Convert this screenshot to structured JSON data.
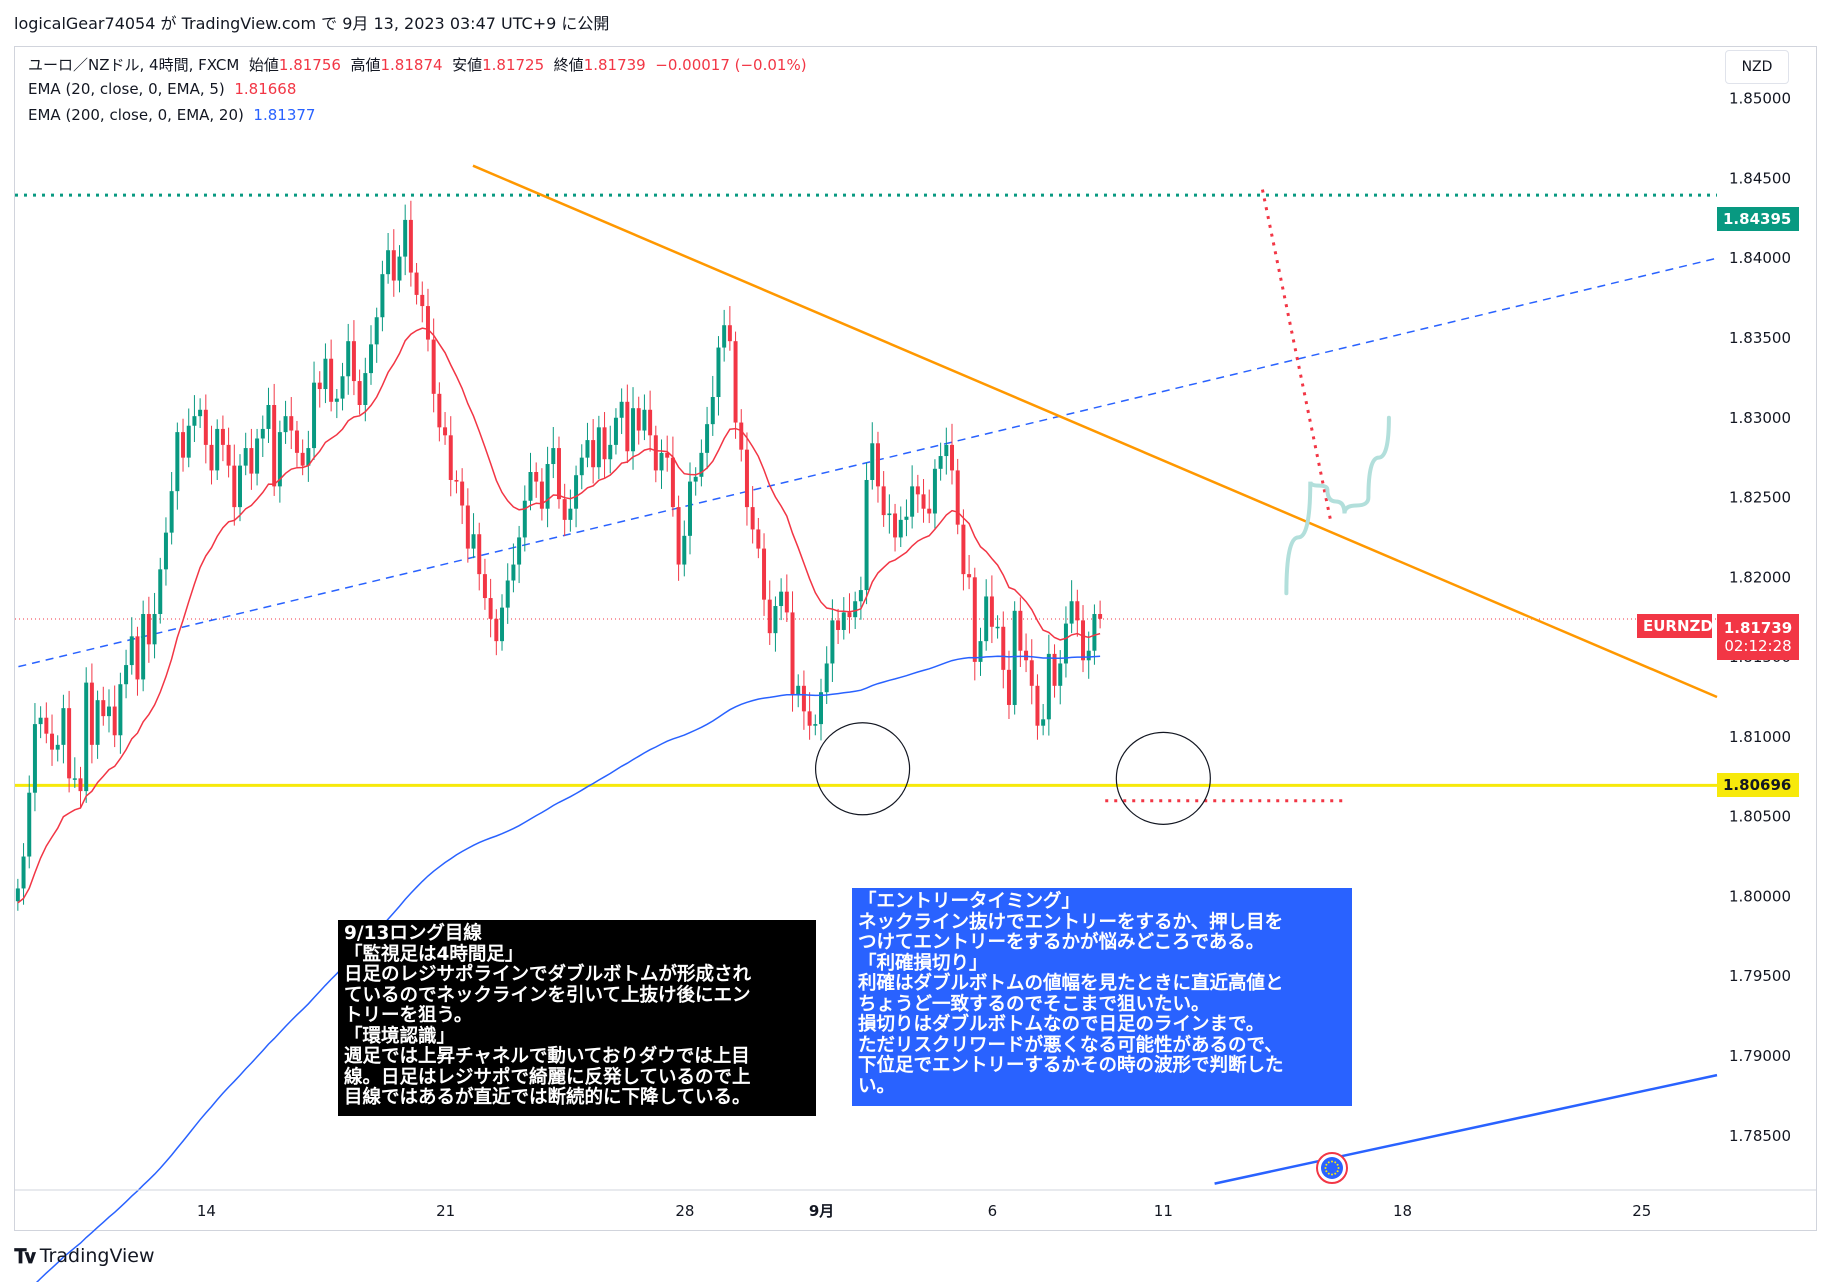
{
  "header": {
    "publisher": "logicalGear74054 が TradingView.com で 9月 13, 2023 03:47 UTC+9 に公開"
  },
  "legend": {
    "symbol": "ユーロ／NZドル, 4時間, FXCM",
    "open_label": "始値",
    "open": "1.81756",
    "high_label": "高値",
    "high": "1.81874",
    "low_label": "安値",
    "low": "1.81725",
    "close_label": "終値",
    "close": "1.81739",
    "change": "−0.00017 (−0.01%)",
    "ema20_label": "EMA (20, close, 0, EMA, 5)",
    "ema20_value": "1.81668",
    "ema200_label": "EMA (200, close, 0, EMA, 20)",
    "ema200_value": "1.81377"
  },
  "currency_button": "NZD",
  "price_tags": {
    "resistance": "1.84395",
    "support": "1.80696",
    "symbol": "EURNZD",
    "last": "1.81739",
    "countdown": "02:12:28"
  },
  "notes": {
    "left": "9/13ロング目線\n「監視足は4時間足」\n日足のレジサポラインでダブルボトムが形成され\nているのでネックラインを引いて上抜け後にエン\nトリーを狙う。\n「環境認識」\n週足では上昇チャネルで動いておりダウでは上目\n線。日足はレジサポで綺麗に反発しているので上\n目線ではあるが直近では断続的に下降している。",
    "right": "「エントリータイミング」\nネックライン抜けでエントリーをするか、押し目を\nつけてエントリーをするかが悩みどころである。\n「利確損切り」\n利確はダブルボトムの値幅を見たときに直近高値と\nちょうど一致するのでそこまで狙いたい。\n損切りはダブルボトムなので日足のラインまで。\nただリスクリワードが悪くなる可能性があるので、\n下位足でエントリーするかその時の波形で判断した\nい。"
  },
  "brand": "TradingView",
  "colors": {
    "up": "#089981",
    "down": "#f23645",
    "ema20": "#f23645",
    "ema200": "#2962ff",
    "resistance": "#089981",
    "support": "#f7e90b",
    "trend": "#ff9800",
    "channel": "#2962ff",
    "projection": "#b2dfdb",
    "stop": "#f23645"
  },
  "chart_data": {
    "type": "candlestick",
    "symbol": "EURNZD",
    "timeframe": "4時間",
    "y_ticks": [
      1.85,
      1.845,
      1.84,
      1.835,
      1.83,
      1.825,
      1.82,
      1.815,
      1.81,
      1.805,
      1.8,
      1.795,
      1.79,
      1.785
    ],
    "y_tick_labels": [
      "1.85000",
      "1.84500",
      "1.84000",
      "1.83500",
      "1.83000",
      "1.82500",
      "1.82000",
      "1.81500",
      "1.81000",
      "1.80500",
      "1.80000",
      "1.79500",
      "1.79000",
      "1.78500"
    ],
    "ylim": [
      1.7816,
      1.8533
    ],
    "x_tick_labels": [
      "14",
      "21",
      "28",
      "9月",
      "6",
      "11",
      "18",
      "25"
    ],
    "x_ticks_day": [
      14,
      21,
      28,
      32,
      37,
      42,
      49,
      56
    ],
    "x_start_day": 8.4,
    "x_end_day": 58.2,
    "bars_per_day": 6,
    "closes": [
      1.8005,
      1.8025,
      1.8065,
      1.8108,
      1.8112,
      1.8102,
      1.8092,
      1.8095,
      1.8118,
      1.8074,
      1.8074,
      1.8066,
      1.8134,
      1.8095,
      1.8123,
      1.8113,
      1.8119,
      1.8101,
      1.8133,
      1.8145,
      1.8163,
      1.8136,
      1.8177,
      1.8158,
      1.8177,
      1.8205,
      1.8228,
      1.8254,
      1.8291,
      1.8275,
      1.8295,
      1.8301,
      1.8305,
      1.8283,
      1.8267,
      1.8293,
      1.8283,
      1.827,
      1.8244,
      1.827,
      1.8281,
      1.8265,
      1.8287,
      1.8293,
      1.8308,
      1.8257,
      1.8291,
      1.8301,
      1.8292,
      1.8278,
      1.827,
      1.8281,
      1.8322,
      1.8318,
      1.8337,
      1.831,
      1.8312,
      1.8326,
      1.8348,
      1.8323,
      1.8308,
      1.8328,
      1.8346,
      1.8363,
      1.839,
      1.8405,
      1.8386,
      1.8401,
      1.8424,
      1.8391,
      1.8377,
      1.837,
      1.8349,
      1.8315,
      1.8294,
      1.8289,
      1.8261,
      1.826,
      1.8245,
      1.8218,
      1.8227,
      1.8202,
      1.8187,
      1.8174,
      1.816,
      1.8181,
      1.8198,
      1.8208,
      1.8225,
      1.8248,
      1.8266,
      1.826,
      1.8243,
      1.8271,
      1.8281,
      1.8249,
      1.8236,
      1.8243,
      1.8264,
      1.8275,
      1.8286,
      1.8269,
      1.8294,
      1.8274,
      1.8283,
      1.83,
      1.831,
      1.8279,
      1.8306,
      1.8292,
      1.8305,
      1.8289,
      1.8267,
      1.8278,
      1.8275,
      1.8244,
      1.8208,
      1.8226,
      1.826,
      1.8263,
      1.8278,
      1.8296,
      1.8313,
      1.8344,
      1.8358,
      1.8348,
      1.8297,
      1.828,
      1.8244,
      1.823,
      1.8218,
      1.8186,
      1.8165,
      1.8182,
      1.8191,
      1.8178,
      1.8126,
      1.8132,
      1.8116,
      1.8107,
      1.8108,
      1.8128,
      1.8146,
      1.8173,
      1.8167,
      1.8178,
      1.8175,
      1.8185,
      1.8192,
      1.8261,
      1.8284,
      1.8257,
      1.8239,
      1.824,
      1.8225,
      1.8236,
      1.8238,
      1.8257,
      1.8252,
      1.8243,
      1.824,
      1.8268,
      1.8276,
      1.8283,
      1.8267,
      1.8233,
      1.8202,
      1.82,
      1.8147,
      1.816,
      1.8188,
      1.8169,
      1.8169,
      1.8142,
      1.812,
      1.8179,
      1.8154,
      1.8148,
      1.8132,
      1.8107,
      1.8111,
      1.8152,
      1.8132,
      1.8146,
      1.8171,
      1.8185,
      1.8173,
      1.8148,
      1.8154,
      1.8177,
      1.8174
    ],
    "ema20_last": 1.81668,
    "ema200_last": 1.81377,
    "last_price": 1.81739,
    "levels": [
      {
        "name": "resistance",
        "price": 1.84395,
        "style": "dotted"
      },
      {
        "name": "support",
        "price": 1.80696,
        "style": "solid"
      }
    ],
    "annotations": {
      "trendline": {
        "from": [
          21.8,
          1.8458
        ],
        "to": [
          58.2,
          1.8125
        ]
      },
      "channel_dashed": {
        "from": [
          8.5,
          1.8144
        ],
        "to": [
          58.2,
          1.84
        ]
      },
      "channel_solid": {
        "from": [
          43.5,
          1.782
        ],
        "to": [
          58.2,
          1.7888
        ]
      },
      "stop_dotted": {
        "from": [
          40.3,
          1.806
        ],
        "to": [
          47.3,
          1.806
        ]
      },
      "target_dotted": {
        "from": [
          44.9,
          1.8443
        ],
        "to": [
          46.9,
          1.8235
        ]
      },
      "projection": [
        [
          45.6,
          1.819
        ],
        [
          46.3,
          1.826
        ],
        [
          46.8,
          1.8255
        ],
        [
          47.3,
          1.824
        ],
        [
          48.0,
          1.825
        ],
        [
          48.6,
          1.83
        ]
      ],
      "circles": [
        [
          33.2,
          1.808
        ],
        [
          42.0,
          1.8074
        ]
      ]
    }
  }
}
